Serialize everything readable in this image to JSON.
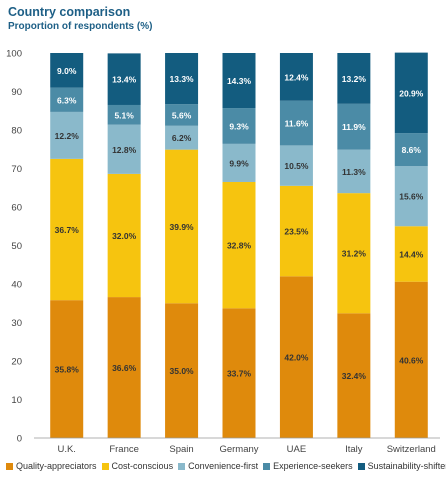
{
  "chart_data": {
    "type": "bar",
    "stacked": true,
    "title": "Country comparison",
    "subtitle": "Proportion of respondents (%)",
    "xlabel": "",
    "ylabel": "",
    "ylim": [
      0,
      100
    ],
    "yticks": [
      0,
      10,
      20,
      30,
      40,
      50,
      60,
      70,
      80,
      90,
      100
    ],
    "grid": false,
    "legend_position": "bottom",
    "categories": [
      "U.K.",
      "France",
      "Spain",
      "Germany",
      "UAE",
      "Italy",
      "Switzerland"
    ],
    "series": [
      {
        "name": "Quality-appreciators",
        "color": "#df8a0c",
        "values": [
          35.8,
          36.6,
          35.0,
          33.7,
          42.0,
          32.4,
          40.6
        ],
        "labels": [
          "35.8%",
          "36.6%",
          "35.0%",
          "33.7%",
          "42.0%",
          "32.4%",
          "40.6%"
        ]
      },
      {
        "name": "Cost-conscious",
        "color": "#f6c40f",
        "values": [
          36.7,
          32.0,
          39.9,
          32.8,
          23.5,
          31.2,
          14.4
        ],
        "labels": [
          "36.7%",
          "32.0%",
          "39.9%",
          "32.8%",
          "23.5%",
          "31.2%",
          "14.4%"
        ]
      },
      {
        "name": "Convenience-first",
        "color": "#8ab9cb",
        "values": [
          12.2,
          12.8,
          6.2,
          9.9,
          10.5,
          11.3,
          15.6
        ],
        "labels": [
          "12.2%",
          "12.8%",
          "6.2%",
          "9.9%",
          "10.5%",
          "11.3%",
          "15.6%"
        ]
      },
      {
        "name": "Experience-seekers",
        "color": "#4b8ba6",
        "values": [
          6.3,
          5.1,
          5.6,
          9.3,
          11.6,
          11.9,
          8.6
        ],
        "labels": [
          "6.3%",
          "5.1%",
          "5.6%",
          "9.3%",
          "11.6%",
          "11.9%",
          "8.6%"
        ]
      },
      {
        "name": "Sustainability-shifters",
        "color": "#135c7f",
        "values": [
          9.0,
          13.4,
          13.3,
          14.3,
          12.4,
          13.2,
          20.9
        ],
        "labels": [
          "9.0%",
          "13.4%",
          "13.3%",
          "14.3%",
          "12.4%",
          "13.2%",
          "20.9%"
        ]
      }
    ]
  }
}
